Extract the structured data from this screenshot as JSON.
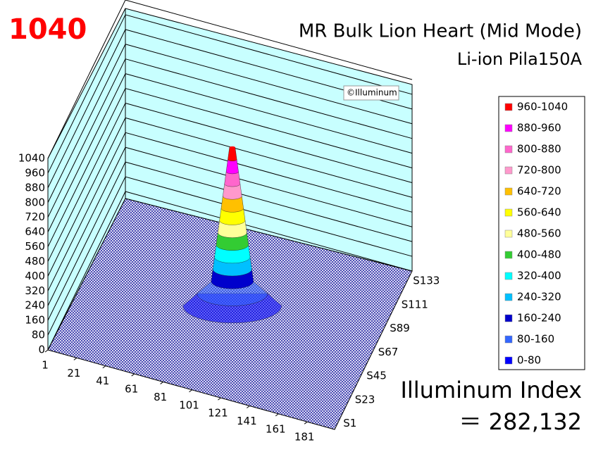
{
  "chart_data": {
    "type": "surface",
    "title": "MR Bulk Lion Heart (Mid Mode)",
    "subtitle": "Li-ion Pila150A",
    "peak_label": "1040",
    "watermark": "©Illuminum",
    "index_label": "Illuminum Index",
    "index_value": {
      "value": 282132,
      "label": "＝ 282,132"
    },
    "zlim": [
      0,
      1040
    ],
    "zticks": [
      0,
      80,
      160,
      240,
      320,
      400,
      480,
      560,
      640,
      720,
      800,
      880,
      960,
      1040
    ],
    "xlim": [
      1,
      200
    ],
    "xticks": [
      1,
      21,
      41,
      61,
      81,
      101,
      121,
      141,
      161,
      181
    ],
    "y_categories": [
      "S1",
      "S23",
      "S45",
      "S67",
      "S89",
      "S111",
      "S133"
    ],
    "legend": [
      {
        "name": "960-1040",
        "range": [
          960,
          1040
        ],
        "color": "#ff0000"
      },
      {
        "name": "880-960",
        "range": [
          880,
          960
        ],
        "color": "#ff00ff"
      },
      {
        "name": "800-880",
        "range": [
          800,
          880
        ],
        "color": "#ff66cc"
      },
      {
        "name": "720-800",
        "range": [
          720,
          800
        ],
        "color": "#ff99cc"
      },
      {
        "name": "640-720",
        "range": [
          640,
          720
        ],
        "color": "#ffc000"
      },
      {
        "name": "560-640",
        "range": [
          560,
          640
        ],
        "color": "#ffff00"
      },
      {
        "name": "480-560",
        "range": [
          480,
          560
        ],
        "color": "#ffff99"
      },
      {
        "name": "400-480",
        "range": [
          400,
          480
        ],
        "color": "#33cc33"
      },
      {
        "name": "320-400",
        "range": [
          320,
          400
        ],
        "color": "#00ffff"
      },
      {
        "name": "240-320",
        "range": [
          240,
          320
        ],
        "color": "#00c0ff"
      },
      {
        "name": "160-240",
        "range": [
          160,
          240
        ],
        "color": "#0000cc"
      },
      {
        "name": "80-160",
        "range": [
          80,
          160
        ],
        "color": "#3366ff"
      },
      {
        "name": "0-80",
        "range": [
          0,
          80
        ],
        "color": "#0000ff"
      }
    ]
  }
}
